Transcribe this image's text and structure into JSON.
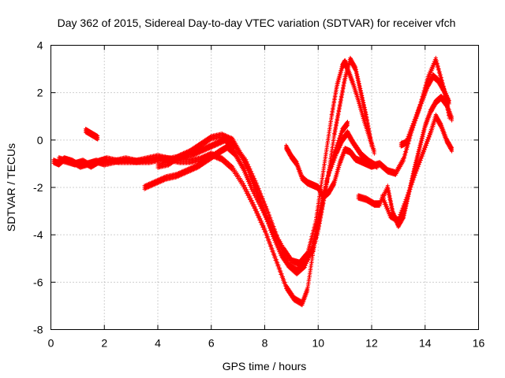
{
  "chart_data": {
    "type": "scatter",
    "title": "Day 362 of 2015, Sidereal Day-to-day VTEC variation (SDTVAR) for receiver vfch",
    "xlabel": "GPS time / hours",
    "ylabel": "SDTVAR / TECUs",
    "xlim": [
      0,
      16
    ],
    "ylim": [
      -8,
      4
    ],
    "x_ticks": [
      "0",
      "2",
      "4",
      "6",
      "8",
      "10",
      "12",
      "14",
      "16"
    ],
    "y_ticks": [
      "-8",
      "-6",
      "-4",
      "-2",
      "0",
      "2",
      "4"
    ],
    "grid": true,
    "marker": "+",
    "color": "#ff0000",
    "tracks": [
      {
        "x": [
          0.1,
          0.3,
          0.5,
          0.8,
          1.1,
          1.4,
          1.7,
          2.0,
          2.4,
          2.8,
          3.2,
          3.6,
          4.0,
          4.4,
          4.8,
          5.2,
          5.6,
          6.0,
          6.4,
          6.8,
          7.2,
          7.6,
          8.0,
          8.4,
          8.8,
          9.1,
          9.4,
          9.6,
          9.8,
          10.1,
          10.4,
          10.7,
          10.9,
          11.1,
          11.3,
          11.6,
          11.9,
          12.2
        ],
        "y": [
          -0.9,
          -1.0,
          -0.8,
          -0.9,
          -1.1,
          -1.0,
          -0.9,
          -1.0,
          -0.9,
          -0.8,
          -0.9,
          -0.8,
          -0.7,
          -0.8,
          -0.9,
          -0.9,
          -0.8,
          -0.6,
          -0.8,
          -1.2,
          -1.9,
          -2.8,
          -3.8,
          -5.0,
          -6.2,
          -6.7,
          -6.9,
          -6.3,
          -4.8,
          -3.0,
          -1.4,
          -0.5,
          0.0,
          0.3,
          -0.1,
          -0.6,
          -0.9,
          -1.1
        ]
      },
      {
        "x": [
          0.3,
          0.6,
          0.9,
          1.2,
          1.5,
          1.8,
          2.1,
          2.5,
          2.9,
          3.3,
          3.7,
          4.1,
          4.5,
          4.9,
          5.3,
          5.7,
          6.1,
          6.5,
          6.9,
          7.3,
          7.7,
          8.1,
          8.5,
          8.9,
          9.2,
          9.5,
          9.8,
          10.0,
          10.3,
          10.6,
          10.9,
          11.1
        ],
        "y": [
          -0.8,
          -0.9,
          -1.0,
          -0.9,
          -1.1,
          -0.9,
          -0.8,
          -0.9,
          -0.9,
          -0.9,
          -0.9,
          -0.8,
          -0.8,
          -0.7,
          -0.6,
          -0.4,
          -0.2,
          0.0,
          -0.3,
          -0.9,
          -1.9,
          -3.0,
          -4.2,
          -5.3,
          -5.6,
          -5.3,
          -4.5,
          -3.3,
          -1.8,
          -0.6,
          0.4,
          0.7
        ]
      },
      {
        "x": [
          3.5,
          3.9,
          4.3,
          4.7,
          5.1,
          5.5,
          5.9,
          6.3,
          6.6,
          6.9,
          7.2,
          7.5,
          7.9,
          8.3,
          8.7,
          9.0,
          9.3,
          9.6,
          9.9,
          10.1,
          10.3,
          10.5,
          10.7,
          10.9,
          11.0,
          11.1,
          11.3,
          11.5,
          11.7,
          11.9,
          12.1
        ],
        "y": [
          -2.0,
          -1.8,
          -1.6,
          -1.5,
          -1.3,
          -1.1,
          -0.8,
          -0.5,
          -0.3,
          -0.6,
          -1.2,
          -2.0,
          -2.9,
          -3.8,
          -4.6,
          -5.1,
          -5.2,
          -4.8,
          -3.5,
          -2.0,
          -0.5,
          1.0,
          2.3,
          3.1,
          3.3,
          3.0,
          2.4,
          1.7,
          0.9,
          0.2,
          -0.5
        ]
      },
      {
        "x": [
          4.0,
          4.4,
          4.8,
          5.2,
          5.6,
          6.0,
          6.4,
          6.8,
          7.1,
          7.4,
          7.7,
          8.0,
          8.3,
          8.6,
          8.9,
          9.2,
          9.5,
          9.8,
          10.0,
          10.2,
          10.4,
          10.6,
          10.8,
          11.0,
          11.2,
          11.4,
          11.6,
          11.8,
          12.0
        ],
        "y": [
          -1.1,
          -1.0,
          -0.7,
          -0.5,
          -0.2,
          0.1,
          0.2,
          0.0,
          -0.6,
          -1.3,
          -2.2,
          -3.1,
          -4.0,
          -4.8,
          -5.3,
          -5.5,
          -5.2,
          -4.6,
          -3.8,
          -2.6,
          -1.3,
          0.2,
          1.4,
          2.6,
          3.4,
          3.0,
          2.0,
          1.0,
          -0.2
        ]
      },
      {
        "x": [
          8.8,
          9.0,
          9.2,
          9.4,
          9.6,
          9.8,
          10.0,
          10.2,
          10.4,
          10.6,
          10.8,
          11.0,
          11.2,
          11.4,
          11.6,
          11.8,
          12.0,
          12.3,
          12.6,
          12.9,
          13.2,
          13.5,
          13.8,
          14.1,
          14.4,
          14.7,
          14.9
        ],
        "y": [
          -0.3,
          -0.7,
          -1.0,
          -1.6,
          -1.8,
          -1.9,
          -2.0,
          -2.4,
          -2.2,
          -1.8,
          -1.0,
          -0.4,
          -0.5,
          -0.8,
          -0.9,
          -1.0,
          -1.1,
          -1.0,
          -1.3,
          -1.4,
          -0.8,
          0.4,
          1.4,
          2.6,
          3.4,
          2.2,
          1.0
        ]
      },
      {
        "x": [
          11.5,
          11.8,
          12.1,
          12.3,
          12.6,
          12.8,
          13.0,
          13.2,
          13.4,
          13.6,
          13.8,
          14.0,
          14.2,
          14.4,
          14.6,
          14.8,
          15.0
        ],
        "y": [
          -2.4,
          -2.5,
          -2.7,
          -2.7,
          -2.0,
          -3.1,
          -3.6,
          -3.2,
          -2.2,
          -1.2,
          -0.3,
          0.6,
          1.2,
          1.6,
          1.8,
          1.5,
          0.9
        ]
      },
      {
        "x": [
          12.4,
          12.7,
          13.0,
          13.3,
          13.6,
          13.9,
          14.2,
          14.4,
          14.6,
          14.8,
          15.0
        ],
        "y": [
          -2.4,
          -3.2,
          -3.4,
          -2.5,
          -1.5,
          -0.6,
          0.3,
          1.0,
          0.6,
          0.0,
          -0.4
        ]
      },
      {
        "x": [
          13.1,
          13.3,
          13.6,
          13.9,
          14.1,
          14.3,
          14.5,
          14.7,
          14.9
        ],
        "y": [
          -0.2,
          -0.1,
          0.8,
          1.7,
          2.3,
          2.7,
          2.5,
          2.1,
          1.6
        ]
      },
      {
        "x": [
          1.3,
          1.45,
          1.6,
          1.75
        ],
        "y": [
          0.4,
          0.3,
          0.2,
          0.1
        ]
      }
    ]
  }
}
